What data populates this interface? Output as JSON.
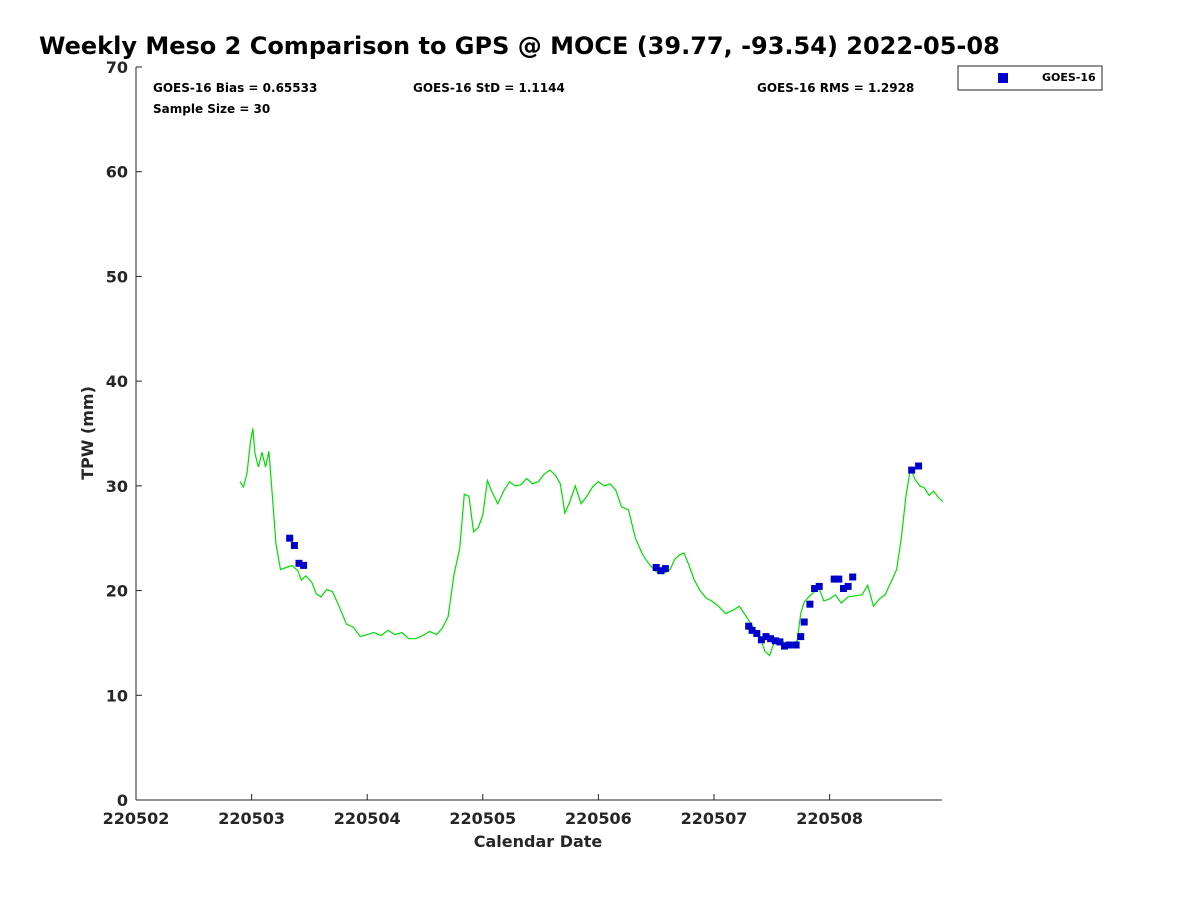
{
  "chart_data": {
    "type": "scatter",
    "title": "Weekly Meso 2 Comparison to GPS @ MOCE (39.77, -93.54) 2022-05-08",
    "xlabel": "Calendar Date",
    "ylabel": "TPW (mm)",
    "xlim": [
      220502,
      220509
    ],
    "ylim": [
      0,
      70
    ],
    "x_ticks": [
      220502,
      220503,
      220504,
      220505,
      220506,
      220507,
      220508
    ],
    "x_tick_labels": [
      "220502",
      "220503",
      "220504",
      "220505",
      "220506",
      "220507",
      "220508"
    ],
    "y_ticks": [
      0,
      10,
      20,
      30,
      40,
      50,
      60,
      70
    ],
    "y_tick_labels": [
      "0",
      "10",
      "20",
      "30",
      "40",
      "50",
      "60",
      "70"
    ],
    "grid": false,
    "legend_position": "top-right-outside",
    "stats": {
      "bias": "GOES-16 Bias = 0.65533",
      "std": "GOES-16 StD = 1.1144",
      "rms": "GOES-16 RMS = 1.2928",
      "sample": "Sample Size = 30"
    },
    "series": [
      {
        "name": "GOES-16",
        "kind": "scatter",
        "color": "#0000cc",
        "marker": "square",
        "x": [
          220503.33,
          220503.37,
          220503.41,
          220503.45,
          220506.5,
          220506.54,
          220506.58,
          220507.3,
          220507.33,
          220507.37,
          220507.41,
          220507.45,
          220507.49,
          220507.53,
          220507.57,
          220507.61,
          220507.65,
          220507.71,
          220507.75,
          220507.78,
          220507.83,
          220507.87,
          220507.91,
          220508.04,
          220508.08,
          220508.12,
          220508.16,
          220508.2,
          220508.71,
          220508.77
        ],
        "y": [
          25.0,
          24.3,
          22.6,
          22.4,
          22.2,
          21.9,
          22.1,
          16.6,
          16.2,
          15.9,
          15.3,
          15.6,
          15.4,
          15.2,
          15.1,
          14.7,
          14.8,
          14.8,
          15.6,
          17.0,
          18.7,
          20.2,
          20.4,
          21.1,
          21.1,
          20.2,
          20.4,
          21.3,
          31.5,
          31.9
        ]
      },
      {
        "kind": "line",
        "color": "#00dd00",
        "x": [
          220502.9,
          220502.93,
          220502.96,
          220502.99,
          220503.01,
          220503.03,
          220503.06,
          220503.09,
          220503.12,
          220503.15,
          220503.18,
          220503.21,
          220503.25,
          220503.3,
          220503.35,
          220503.4,
          220503.43,
          220503.47,
          220503.52,
          220503.56,
          220503.6,
          220503.65,
          220503.7,
          220503.76,
          220503.82,
          220503.88,
          220503.94,
          220504.0,
          220504.06,
          220504.12,
          220504.18,
          220504.24,
          220504.3,
          220504.36,
          220504.42,
          220504.48,
          220504.54,
          220504.6,
          220504.65,
          220504.7,
          220504.75,
          220504.8,
          220504.84,
          220504.88,
          220504.92,
          220504.96,
          220505.0,
          220505.04,
          220505.08,
          220505.13,
          220505.18,
          220505.23,
          220505.28,
          220505.33,
          220505.38,
          220505.43,
          220505.48,
          220505.53,
          220505.58,
          220505.63,
          220505.67,
          220505.71,
          220505.75,
          220505.8,
          220505.85,
          220505.9,
          220505.95,
          220506.0,
          220506.05,
          220506.1,
          220506.15,
          220506.2,
          220506.26,
          220506.32,
          220506.38,
          220506.44,
          220506.5,
          220506.56,
          220506.62,
          220506.66,
          220506.7,
          220506.74,
          220506.78,
          220506.83,
          220506.88,
          220506.93,
          220506.98,
          220507.04,
          220507.1,
          220507.16,
          220507.22,
          220507.28,
          220507.34,
          220507.4,
          220507.44,
          220507.48,
          220507.52,
          220507.56,
          220507.6,
          220507.64,
          220507.68,
          220507.72,
          220507.75,
          220507.78,
          220507.82,
          220507.86,
          220507.9,
          220507.95,
          220508.0,
          220508.05,
          220508.1,
          220508.16,
          220508.22,
          220508.28,
          220508.33,
          220508.38,
          220508.43,
          220508.48,
          220508.53,
          220508.58,
          220508.62,
          220508.66,
          220508.7,
          220508.74,
          220508.78,
          220508.82,
          220508.86,
          220508.9,
          220508.94,
          220508.98
        ],
        "y": [
          30.4,
          29.9,
          31.2,
          34.2,
          35.5,
          33.0,
          31.8,
          33.2,
          31.8,
          33.3,
          29.0,
          24.5,
          22.0,
          22.2,
          22.4,
          21.9,
          21.0,
          21.4,
          20.8,
          19.7,
          19.4,
          20.1,
          19.9,
          18.4,
          16.8,
          16.5,
          15.6,
          15.8,
          16.0,
          15.7,
          16.2,
          15.8,
          16.0,
          15.4,
          15.4,
          15.7,
          16.1,
          15.8,
          16.4,
          17.5,
          21.5,
          24.0,
          29.2,
          29.0,
          25.6,
          26.0,
          27.2,
          30.5,
          29.4,
          28.3,
          29.5,
          30.4,
          30.0,
          30.1,
          30.7,
          30.2,
          30.4,
          31.1,
          31.5,
          31.0,
          30.2,
          27.4,
          28.4,
          30.0,
          28.3,
          29.0,
          29.9,
          30.4,
          30.0,
          30.2,
          29.6,
          28.0,
          27.7,
          25.0,
          23.5,
          22.5,
          21.8,
          21.6,
          22.0,
          23.0,
          23.4,
          23.6,
          22.5,
          21.0,
          20.0,
          19.3,
          19.0,
          18.5,
          17.8,
          18.1,
          18.5,
          17.5,
          16.5,
          15.5,
          14.2,
          13.8,
          15.0,
          15.4,
          15.1,
          14.8,
          14.9,
          15.2,
          17.8,
          18.9,
          19.4,
          19.8,
          20.5,
          19.0,
          19.2,
          19.6,
          18.8,
          19.4,
          19.5,
          19.6,
          20.5,
          18.5,
          19.2,
          19.6,
          20.8,
          22.0,
          25.0,
          29.0,
          31.7,
          30.6,
          30.0,
          29.8,
          29.1,
          29.5,
          28.9,
          28.5
        ]
      }
    ]
  }
}
